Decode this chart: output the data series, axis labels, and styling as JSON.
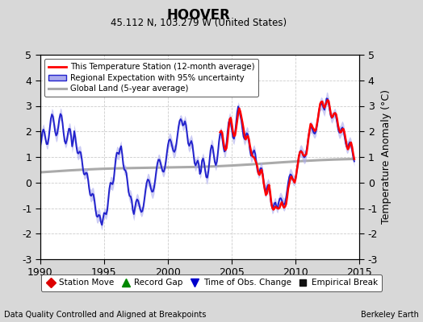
{
  "title": "HOOVER",
  "subtitle": "45.112 N, 103.279 W (United States)",
  "ylabel": "Temperature Anomaly (°C)",
  "xlabel_left": "Data Quality Controlled and Aligned at Breakpoints",
  "xlabel_right": "Berkeley Earth",
  "ylim": [
    -3,
    5
  ],
  "xlim": [
    1990,
    2015
  ],
  "yticks": [
    -3,
    -2,
    -1,
    0,
    1,
    2,
    3,
    4,
    5
  ],
  "xticks": [
    1990,
    1995,
    2000,
    2005,
    2010,
    2015
  ],
  "bg_color": "#d8d8d8",
  "plot_bg_color": "#ffffff",
  "grid_color": "#cccccc",
  "red_start_year": 2004.0,
  "regional_color": "#2222cc",
  "band_color": "#aaaaee",
  "band_alpha": 0.6,
  "gray_color": "#aaaaaa",
  "red_color": "#ff0000"
}
